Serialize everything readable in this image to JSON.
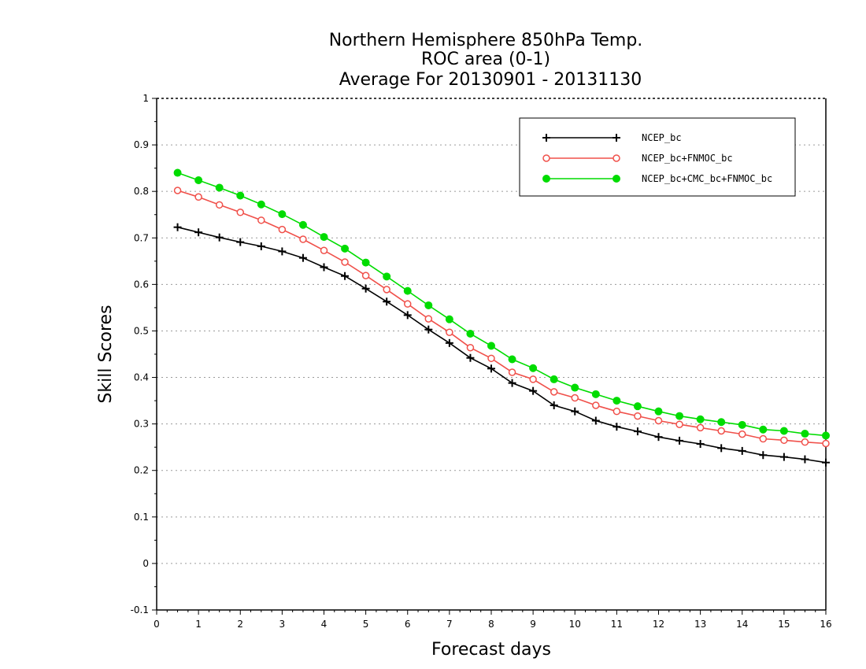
{
  "chart_data": {
    "type": "line",
    "title_lines": [
      "Northern Hemisphere 850hPa Temp.",
      "ROC area (0-1)",
      "Average For 20130901 - 20131130"
    ],
    "xlabel": "Forecast days",
    "ylabel": "Skill Scores",
    "xlim": [
      0,
      16
    ],
    "ylim": [
      -0.1,
      1
    ],
    "x_ticks": [
      "0",
      "1",
      "2",
      "3",
      "4",
      "5",
      "6",
      "7",
      "8",
      "9",
      "10",
      "11",
      "12",
      "13",
      "14",
      "15",
      "16"
    ],
    "y_ticks": [
      "-0.1",
      "0",
      "0.1",
      "0.2",
      "0.3",
      "0.4",
      "0.5",
      "0.6",
      "0.7",
      "0.8",
      "0.9",
      "1"
    ],
    "grid": "horizontal dotted",
    "legend_position": "top-right",
    "x": [
      0.5,
      1,
      1.5,
      2,
      2.5,
      3,
      3.5,
      4,
      4.5,
      5,
      5.5,
      6,
      6.5,
      7,
      7.5,
      8,
      8.5,
      9,
      9.5,
      10,
      10.5,
      11,
      11.5,
      12,
      12.5,
      13,
      13.5,
      14,
      14.5,
      15,
      15.5,
      16
    ],
    "series": [
      {
        "name": "NCEP_bc",
        "color": "#000000",
        "marker": "plus",
        "values": [
          0.723,
          0.712,
          0.701,
          0.691,
          0.682,
          0.671,
          0.657,
          0.637,
          0.618,
          0.591,
          0.563,
          0.534,
          0.503,
          0.474,
          0.442,
          0.419,
          0.388,
          0.371,
          0.34,
          0.327,
          0.307,
          0.294,
          0.284,
          0.272,
          0.264,
          0.257,
          0.248,
          0.242,
          0.233,
          0.229,
          0.224,
          0.217
        ]
      },
      {
        "name": "NCEP_bc+FNMOC_bc",
        "color": "#f0504a",
        "marker": "open-circle",
        "values": [
          0.802,
          0.788,
          0.771,
          0.755,
          0.738,
          0.718,
          0.697,
          0.673,
          0.648,
          0.619,
          0.589,
          0.558,
          0.526,
          0.497,
          0.464,
          0.441,
          0.411,
          0.396,
          0.369,
          0.356,
          0.34,
          0.327,
          0.317,
          0.307,
          0.299,
          0.292,
          0.285,
          0.278,
          0.268,
          0.265,
          0.261,
          0.258
        ]
      },
      {
        "name": "NCEP_bc+CMC_bc+FNMOC_bc",
        "color": "#00dc00",
        "marker": "filled-circle",
        "values": [
          0.84,
          0.824,
          0.808,
          0.791,
          0.772,
          0.751,
          0.728,
          0.702,
          0.677,
          0.647,
          0.617,
          0.586,
          0.555,
          0.525,
          0.494,
          0.468,
          0.439,
          0.42,
          0.396,
          0.378,
          0.364,
          0.35,
          0.338,
          0.327,
          0.317,
          0.31,
          0.304,
          0.298,
          0.288,
          0.285,
          0.279,
          0.275
        ]
      }
    ]
  }
}
